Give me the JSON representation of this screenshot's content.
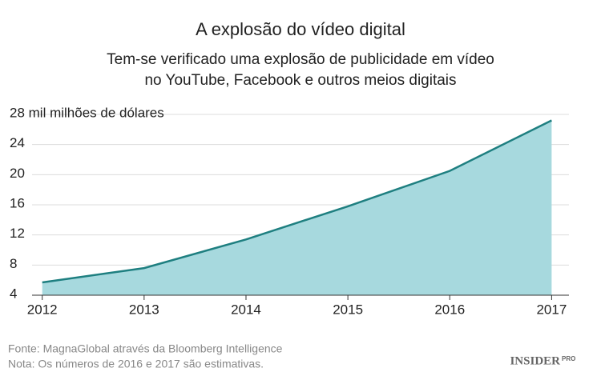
{
  "chart_data": {
    "type": "area",
    "title": "A explosão do vídeo digital",
    "subtitle": [
      "Tem-se verificado uma explosão de publicidade em vídeo",
      "no YouTube, Facebook e outros meios digitais"
    ],
    "x": [
      2012,
      2013,
      2014,
      2015,
      2016,
      2017
    ],
    "values": [
      5.7,
      7.6,
      11.4,
      15.8,
      20.5,
      27.2
    ],
    "color": "#a7d9de",
    "line_color": "#1e7f80",
    "xlim": [
      2011.9,
      2017.17
    ],
    "xticks": [
      2012,
      2013,
      2014,
      2015,
      2016,
      2017
    ],
    "ylim": [
      4,
      28
    ],
    "yticks": [
      4,
      8,
      12,
      16,
      20,
      24,
      {
        "value": 28,
        "label": "28 mil milhões de dólares"
      }
    ],
    "grid": true,
    "source": "Fonte: MagnaGlobal através da Bloomberg Intelligence",
    "note": "Nota: Os números de 2016 e 2017 são estimativas.",
    "brand": "INSIDER",
    "brand_suffix": "PRO"
  }
}
